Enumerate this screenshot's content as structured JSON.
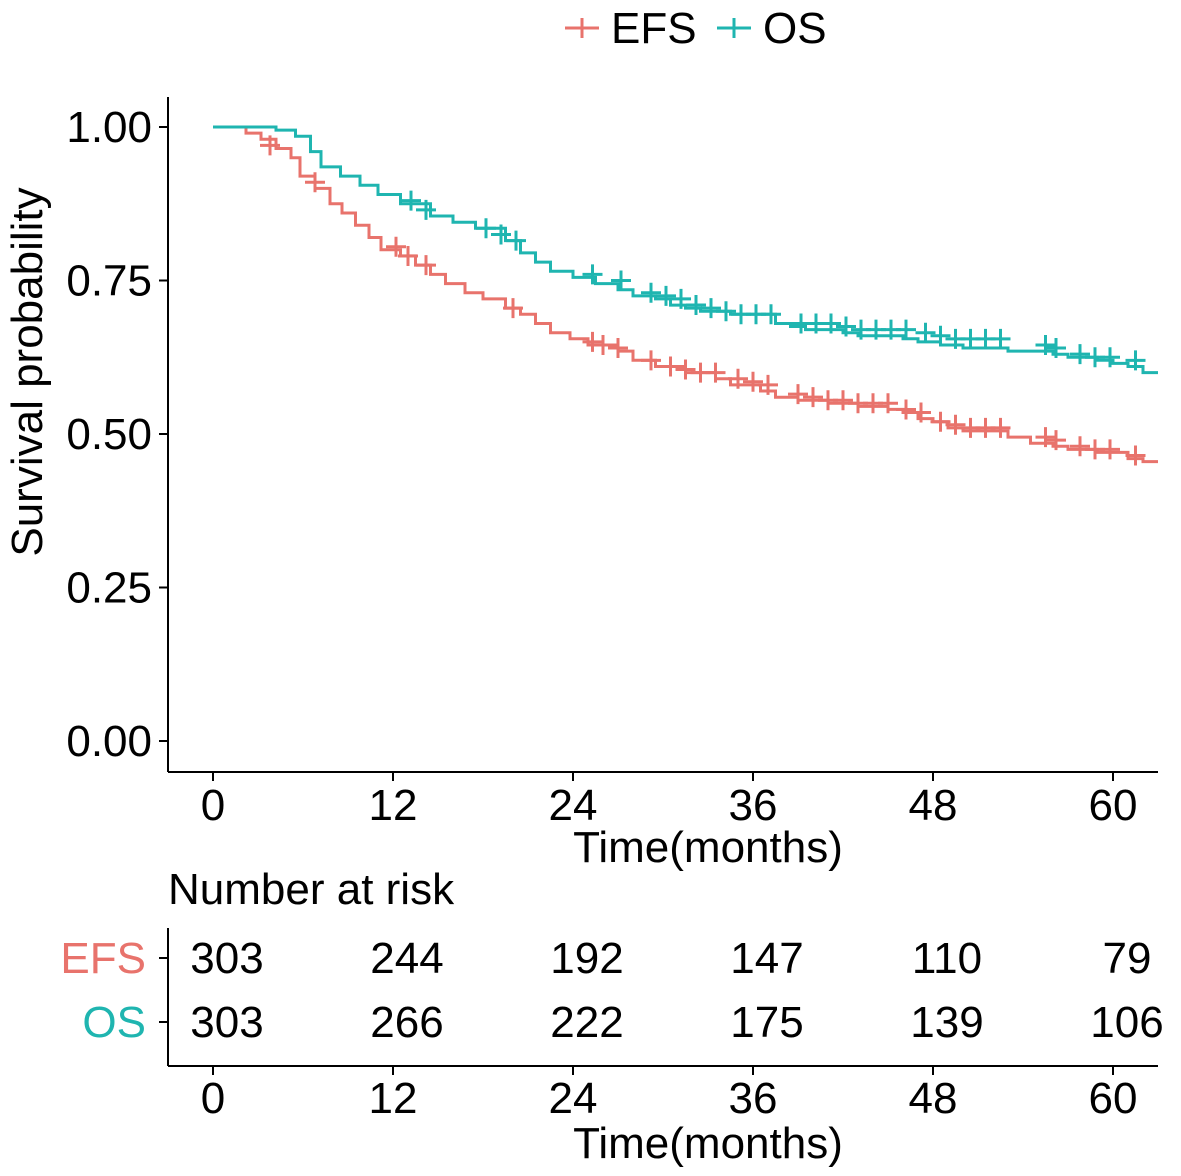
{
  "chart_data": {
    "type": "line",
    "subtype": "kaplan-meier",
    "title": "",
    "xlabel": "Time(months)",
    "ylabel": "Survival probability",
    "xlim": [
      -5,
      63
    ],
    "ylim": [
      0,
      1.05
    ],
    "x_ticks": [
      0,
      12,
      24,
      36,
      48,
      60
    ],
    "x_tick_labels": [
      "0",
      "12",
      "24",
      "36",
      "48",
      "60"
    ],
    "y_ticks": [
      0,
      0.25,
      0.5,
      0.75,
      1.0
    ],
    "y_tick_labels": [
      "0.00",
      "0.25",
      "0.50",
      "0.75",
      "1.00"
    ],
    "grid": false,
    "legend_position": "top",
    "series": [
      {
        "name": "EFS",
        "color": "#E8736C",
        "steps": [
          [
            0,
            1.0
          ],
          [
            2.2,
            0.99
          ],
          [
            3.2,
            0.98
          ],
          [
            4.2,
            0.965
          ],
          [
            5.2,
            0.95
          ],
          [
            5.8,
            0.92
          ],
          [
            6.8,
            0.9
          ],
          [
            7.8,
            0.875
          ],
          [
            8.6,
            0.86
          ],
          [
            9.5,
            0.84
          ],
          [
            10.4,
            0.82
          ],
          [
            11.2,
            0.8
          ],
          [
            12.5,
            0.79
          ],
          [
            13.5,
            0.775
          ],
          [
            14.5,
            0.76
          ],
          [
            15.5,
            0.745
          ],
          [
            16.8,
            0.73
          ],
          [
            18.0,
            0.72
          ],
          [
            19.5,
            0.705
          ],
          [
            20.5,
            0.695
          ],
          [
            21.5,
            0.68
          ],
          [
            22.5,
            0.665
          ],
          [
            23.8,
            0.655
          ],
          [
            25.0,
            0.645
          ],
          [
            27.0,
            0.635
          ],
          [
            28.0,
            0.62
          ],
          [
            29.5,
            0.61
          ],
          [
            31.5,
            0.6
          ],
          [
            33.5,
            0.59
          ],
          [
            34.5,
            0.58
          ],
          [
            36.5,
            0.57
          ],
          [
            37.5,
            0.56
          ],
          [
            39.0,
            0.555
          ],
          [
            41.0,
            0.55
          ],
          [
            43.0,
            0.545
          ],
          [
            45.0,
            0.54
          ],
          [
            46.0,
            0.535
          ],
          [
            47.0,
            0.525
          ],
          [
            48.0,
            0.52
          ],
          [
            49.0,
            0.51
          ],
          [
            50.0,
            0.505
          ],
          [
            53.0,
            0.495
          ],
          [
            54.5,
            0.485
          ],
          [
            56.0,
            0.48
          ],
          [
            57.0,
            0.475
          ],
          [
            59.0,
            0.47
          ],
          [
            61.0,
            0.46
          ],
          [
            62,
            0.455
          ],
          [
            63,
            0.455
          ]
        ],
        "censors": [
          [
            3.8,
            0.97
          ],
          [
            6.8,
            0.91
          ],
          [
            12.2,
            0.805
          ],
          [
            13.0,
            0.79
          ],
          [
            14.2,
            0.775
          ],
          [
            20.0,
            0.705
          ],
          [
            25.3,
            0.65
          ],
          [
            26.0,
            0.645
          ],
          [
            27.0,
            0.64
          ],
          [
            29.2,
            0.62
          ],
          [
            30.5,
            0.61
          ],
          [
            31.5,
            0.605
          ],
          [
            32.5,
            0.6
          ],
          [
            33.5,
            0.6
          ],
          [
            35.0,
            0.59
          ],
          [
            36.0,
            0.585
          ],
          [
            37.0,
            0.58
          ],
          [
            39.0,
            0.565
          ],
          [
            40.0,
            0.56
          ],
          [
            41.0,
            0.555
          ],
          [
            42.0,
            0.555
          ],
          [
            43.0,
            0.55
          ],
          [
            44.0,
            0.55
          ],
          [
            45.0,
            0.55
          ],
          [
            46.2,
            0.54
          ],
          [
            47.2,
            0.535
          ],
          [
            48.5,
            0.52
          ],
          [
            49.5,
            0.515
          ],
          [
            50.5,
            0.51
          ],
          [
            51.5,
            0.51
          ],
          [
            52.5,
            0.51
          ],
          [
            55.5,
            0.495
          ],
          [
            56.2,
            0.49
          ],
          [
            57.8,
            0.48
          ],
          [
            58.8,
            0.475
          ],
          [
            59.8,
            0.475
          ],
          [
            61.5,
            0.465
          ]
        ]
      },
      {
        "name": "OS",
        "color": "#1FB5B0",
        "steps": [
          [
            0,
            1.0
          ],
          [
            4.2,
            0.995
          ],
          [
            5.5,
            0.985
          ],
          [
            6.5,
            0.96
          ],
          [
            7.2,
            0.935
          ],
          [
            8.5,
            0.92
          ],
          [
            9.8,
            0.905
          ],
          [
            11.0,
            0.89
          ],
          [
            12.5,
            0.875
          ],
          [
            14.5,
            0.855
          ],
          [
            16.0,
            0.845
          ],
          [
            17.5,
            0.835
          ],
          [
            19.5,
            0.815
          ],
          [
            20.5,
            0.795
          ],
          [
            21.5,
            0.78
          ],
          [
            22.5,
            0.765
          ],
          [
            24.0,
            0.755
          ],
          [
            25.5,
            0.745
          ],
          [
            27.0,
            0.735
          ],
          [
            28.0,
            0.725
          ],
          [
            29.5,
            0.72
          ],
          [
            30.5,
            0.71
          ],
          [
            31.5,
            0.705
          ],
          [
            32.5,
            0.7
          ],
          [
            34.5,
            0.695
          ],
          [
            37.5,
            0.68
          ],
          [
            38.5,
            0.675
          ],
          [
            39.5,
            0.67
          ],
          [
            42.0,
            0.665
          ],
          [
            43.0,
            0.66
          ],
          [
            46.0,
            0.655
          ],
          [
            47.0,
            0.65
          ],
          [
            48.5,
            0.645
          ],
          [
            50.0,
            0.64
          ],
          [
            53.0,
            0.635
          ],
          [
            55.0,
            0.635
          ],
          [
            56.0,
            0.63
          ],
          [
            57.0,
            0.625
          ],
          [
            59.0,
            0.62
          ],
          [
            60.0,
            0.615
          ],
          [
            61.0,
            0.61
          ],
          [
            62,
            0.6
          ],
          [
            63,
            0.6
          ]
        ],
        "censors": [
          [
            13.2,
            0.88
          ],
          [
            14.2,
            0.865
          ],
          [
            18.2,
            0.835
          ],
          [
            19.2,
            0.825
          ],
          [
            20.2,
            0.815
          ],
          [
            25.3,
            0.76
          ],
          [
            27.2,
            0.75
          ],
          [
            29.2,
            0.73
          ],
          [
            30.2,
            0.725
          ],
          [
            31.2,
            0.72
          ],
          [
            32.2,
            0.71
          ],
          [
            33.2,
            0.705
          ],
          [
            34.2,
            0.7
          ],
          [
            35.2,
            0.695
          ],
          [
            36.2,
            0.695
          ],
          [
            37.2,
            0.695
          ],
          [
            39.2,
            0.68
          ],
          [
            40.2,
            0.68
          ],
          [
            41.2,
            0.68
          ],
          [
            42.2,
            0.675
          ],
          [
            43.2,
            0.67
          ],
          [
            44.2,
            0.67
          ],
          [
            45.2,
            0.67
          ],
          [
            46.2,
            0.67
          ],
          [
            47.5,
            0.665
          ],
          [
            48.5,
            0.66
          ],
          [
            49.5,
            0.655
          ],
          [
            50.5,
            0.655
          ],
          [
            51.5,
            0.655
          ],
          [
            52.5,
            0.655
          ],
          [
            55.5,
            0.645
          ],
          [
            56.2,
            0.64
          ],
          [
            57.8,
            0.63
          ],
          [
            58.8,
            0.625
          ],
          [
            59.8,
            0.625
          ],
          [
            61.5,
            0.62
          ]
        ]
      }
    ],
    "risk_table": {
      "title": "Number at risk",
      "times": [
        0,
        12,
        24,
        36,
        48,
        60
      ],
      "xlabel": "Time(months)",
      "rows": [
        {
          "name": "EFS",
          "color": "#E8736C",
          "values": [
            "303",
            "244",
            "192",
            "147",
            "110",
            "79"
          ]
        },
        {
          "name": "OS",
          "color": "#1FB5B0",
          "values": [
            "303",
            "266",
            "222",
            "175",
            "139",
            "106"
          ]
        }
      ]
    }
  }
}
